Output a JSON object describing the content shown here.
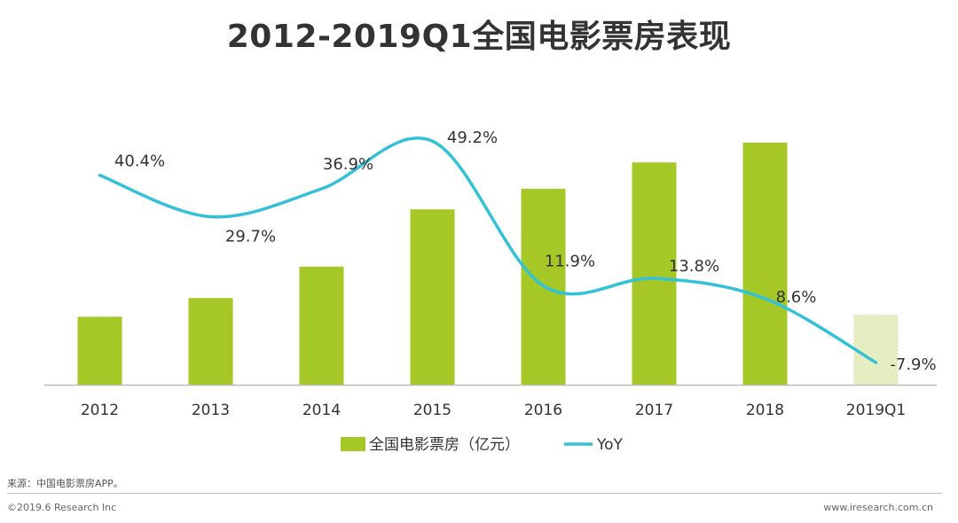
{
  "chart_data": {
    "type": "bar+line",
    "title": "2012-2019Q1全国电影票房表现",
    "categories": [
      "2012",
      "2013",
      "2014",
      "2015",
      "2016",
      "2017",
      "2018",
      "2019Q1"
    ],
    "series": [
      {
        "name": "全国电影票房（亿元）",
        "kind": "bar",
        "axis": "left",
        "values": [
          171,
          218,
          297,
          441,
          493,
          559,
          609,
          176
        ],
        "ylim": [
          0,
          700
        ]
      },
      {
        "name": "YoY",
        "kind": "line",
        "axis": "right",
        "values": [
          40.4,
          29.7,
          36.9,
          49.2,
          11.9,
          13.8,
          8.6,
          -7.9
        ],
        "labels": [
          "40.4%",
          "29.7%",
          "36.9%",
          "49.2%",
          "11.9%",
          "13.8%",
          "8.6%",
          "-7.9%"
        ],
        "ylim": [
          -15,
          60
        ]
      }
    ],
    "legend": [
      "全国电影票房（亿元）",
      "YoY"
    ],
    "legend_position": "bottom"
  },
  "colors": {
    "bar": "#a5c826",
    "bar_highlight": "#dfe8b4",
    "line": "#33c1d8",
    "axis": "#bbbbbb",
    "text": "#333333"
  },
  "footer": {
    "source": "来源：中国电影票房APP。",
    "copyright": "©2019.6 Research Inc",
    "url": "www.iresearch.com.cn"
  }
}
